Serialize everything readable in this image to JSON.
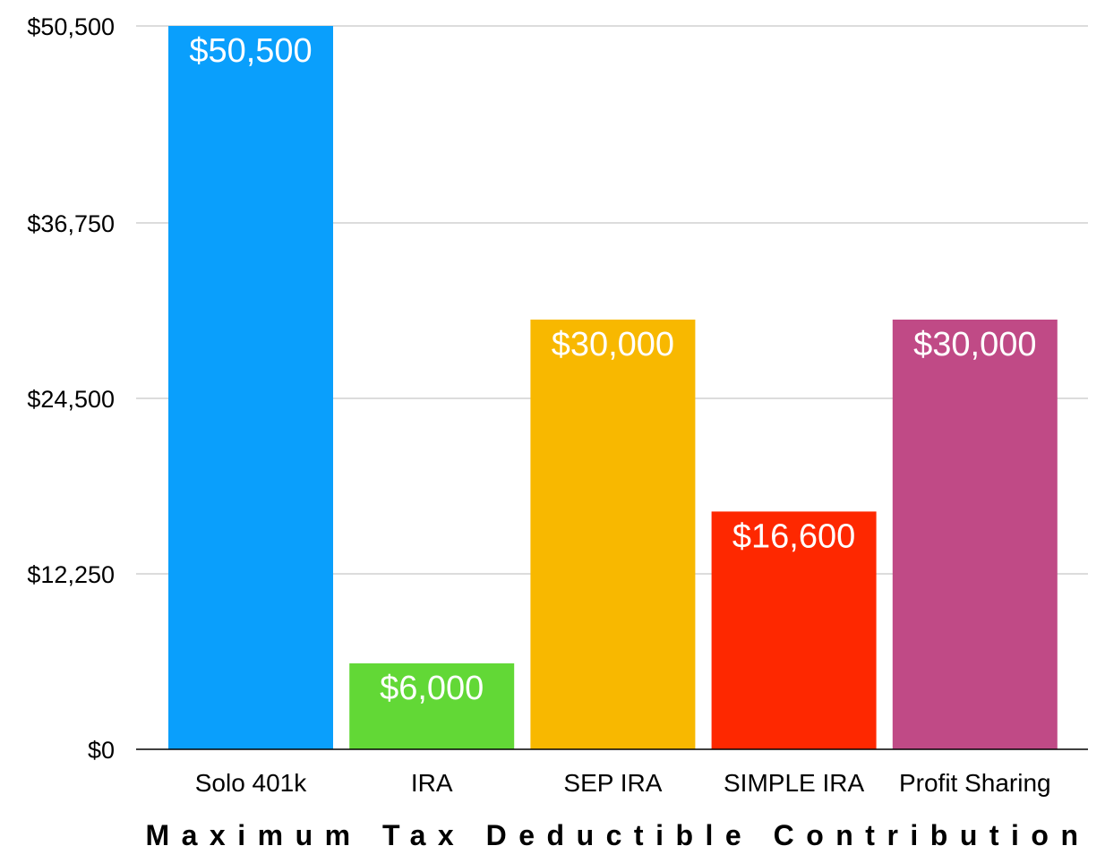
{
  "chart_data": {
    "type": "bar",
    "title": "",
    "xlabel": "Maximum Tax Deductible Contribution",
    "ylabel": "",
    "ylim": [
      0,
      50500
    ],
    "y_ticks": [
      0,
      12250,
      24500,
      36750,
      50500
    ],
    "y_tick_labels": [
      "$0",
      "$12,250",
      "$24,500",
      "$36,750",
      "$50,500"
    ],
    "grid": true,
    "categories": [
      "Solo 401k",
      "IRA",
      "SEP IRA",
      "SIMPLE IRA",
      "Profit Sharing"
    ],
    "values": [
      50500,
      6000,
      30000,
      16600,
      30000
    ],
    "data_labels": [
      "$50,500",
      "$6,000",
      "$30,000",
      "$16,600",
      "$30,000"
    ],
    "colors": [
      "#0a9ffc",
      "#62d836",
      "#f8b800",
      "#fe2800",
      "#c04a86"
    ]
  }
}
